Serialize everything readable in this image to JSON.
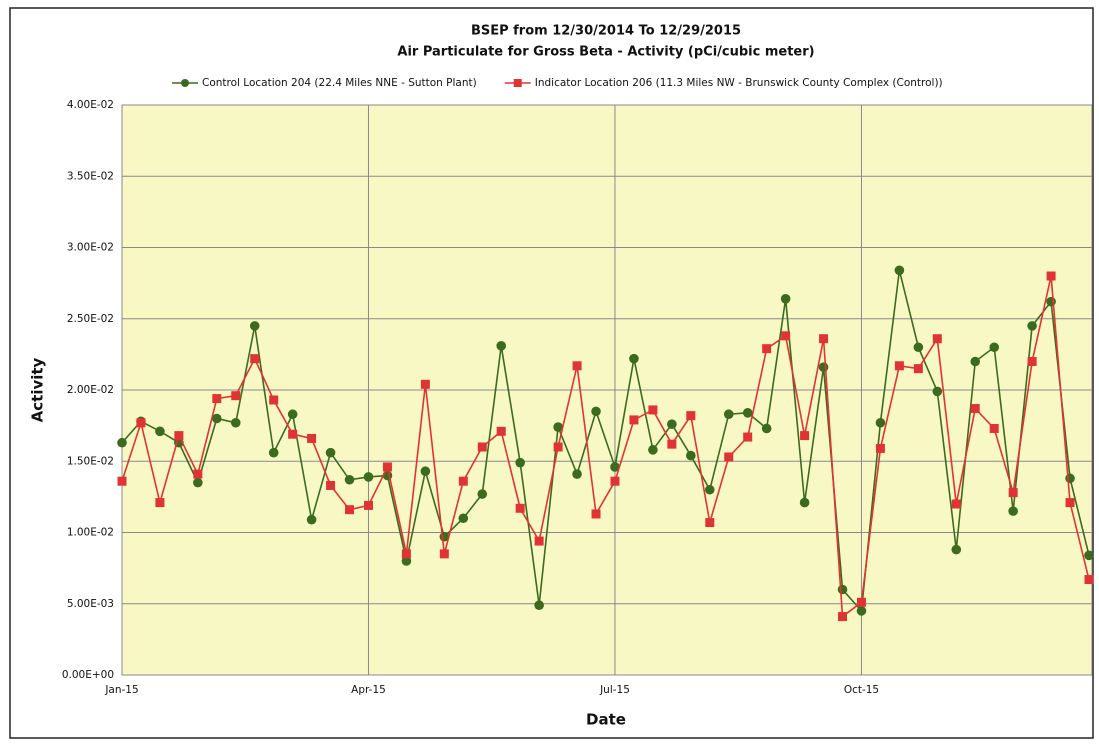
{
  "chart_data": {
    "type": "line",
    "title": "BSEP from 12/30/2014 To 12/29/2015",
    "subtitle": "Air Particulate for Gross Beta - Activity (pCi/cubic meter)",
    "x_label": "Date",
    "y_label": "Activity",
    "categories": [
      "Jan-15",
      null,
      null,
      null,
      null,
      null,
      null,
      null,
      null,
      null,
      null,
      null,
      null,
      "Apr-15",
      null,
      null,
      null,
      null,
      null,
      null,
      null,
      null,
      null,
      null,
      null,
      null,
      "Jul-15",
      null,
      null,
      null,
      null,
      null,
      null,
      null,
      null,
      null,
      null,
      null,
      null,
      "Oct-15",
      null,
      null,
      null,
      null,
      null,
      null,
      null,
      null,
      null,
      null,
      null,
      null
    ],
    "series": [
      {
        "name": "Control Location 204 (22.4 Miles NNE - Sutton Plant)",
        "color": "#3b6b1f",
        "marker": "circle",
        "values": [
          0.0163,
          0.0178,
          0.0171,
          0.0163,
          0.0135,
          0.018,
          0.0177,
          0.0245,
          0.0156,
          0.0183,
          0.0109,
          0.0156,
          0.0137,
          0.0139,
          0.014,
          0.008,
          0.0143,
          0.0097,
          0.011,
          0.0127,
          0.0231,
          0.0149,
          0.0049,
          0.0174,
          0.0141,
          0.0185,
          0.0146,
          0.0222,
          0.0158,
          0.0176,
          0.0154,
          0.013,
          0.0183,
          0.0184,
          0.0173,
          0.0264,
          0.0121,
          0.0216,
          0.006,
          0.0045,
          0.0177,
          0.0284,
          0.023,
          0.0199,
          0.0088,
          0.022,
          0.023,
          0.0115,
          0.0245,
          0.0262,
          0.0138,
          0.0084
        ]
      },
      {
        "name": "Indicator Location 206 (11.3 Miles NW - Brunswick County Complex (Control))",
        "color": "#e03434",
        "marker": "square",
        "values": [
          0.0136,
          0.0177,
          0.0121,
          0.0168,
          0.0141,
          0.0194,
          0.0196,
          0.0222,
          0.0193,
          0.0169,
          0.0166,
          0.0133,
          0.0116,
          0.0119,
          0.0146,
          0.0085,
          0.0204,
          0.0085,
          0.0136,
          0.016,
          0.0171,
          0.0117,
          0.0094,
          0.016,
          0.0217,
          0.0113,
          0.0136,
          0.0179,
          0.0186,
          0.0162,
          0.0182,
          0.0107,
          0.0153,
          0.0167,
          0.0229,
          0.0238,
          0.0168,
          0.0236,
          0.0041,
          0.0051,
          0.0159,
          0.0217,
          0.0215,
          0.0236,
          0.012,
          0.0187,
          0.0173,
          0.0128,
          0.022,
          0.028,
          0.0121,
          0.0067
        ]
      }
    ],
    "ylim": [
      0,
      0.04
    ],
    "yticks": [
      {
        "value": 0,
        "label": "0.00E+00"
      },
      {
        "value": 0.005,
        "label": "5.00E-03"
      },
      {
        "value": 0.01,
        "label": "1.00E-02"
      },
      {
        "value": 0.015,
        "label": "1.50E-02"
      },
      {
        "value": 0.02,
        "label": "2.00E-02"
      },
      {
        "value": 0.025,
        "label": "2.50E-02"
      },
      {
        "value": 0.03,
        "label": "3.00E-02"
      },
      {
        "value": 0.035,
        "label": "3.50E-02"
      },
      {
        "value": 0.04,
        "label": "4.00E-02"
      }
    ],
    "grid": true,
    "legend": "top",
    "plot_background": "#f8f8c4"
  }
}
